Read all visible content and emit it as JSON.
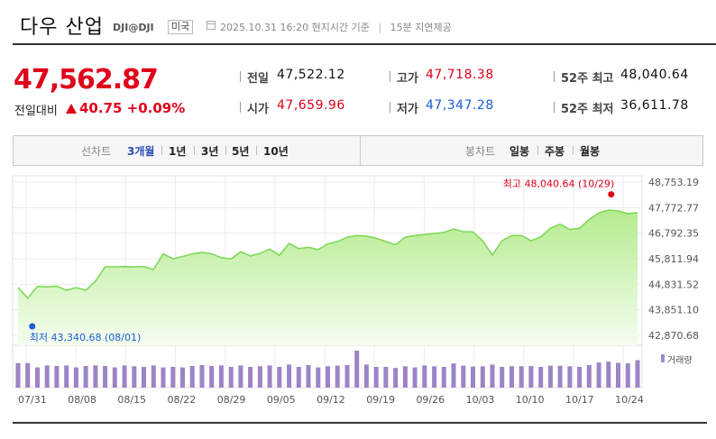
{
  "header": {
    "title": "다우 산업",
    "code": "DJI@DJI",
    "country": "미국",
    "timestamp": "2025.10.31 16:20 현지시간 기준",
    "delay": "15분 지연제공"
  },
  "quote": {
    "price": "47,562.87",
    "change_label": "전일대비",
    "change": "40.75 +0.09%",
    "stats": {
      "prev_close_label": "전일",
      "prev_close": "47,522.12",
      "open_label": "시가",
      "open": "47,659.96",
      "high_label": "고가",
      "high": "47,718.38",
      "low_label": "저가",
      "low": "47,347.28",
      "w52_high_label": "52주 최고",
      "w52_high": "48,040.64",
      "w52_low_label": "52주 최저",
      "w52_low": "36,611.78"
    }
  },
  "tabs": {
    "line_label": "선차트",
    "line_items": [
      "3개월",
      "1년",
      "3년",
      "5년",
      "10년"
    ],
    "line_active": "3개월",
    "candle_label": "봉차트",
    "candle_items": [
      "일봉",
      "주봉",
      "월봉"
    ]
  },
  "chart_data": {
    "type": "area",
    "color": "#7ed957",
    "volume_color": "#9c84c6",
    "y_ticks": [
      "48,753.19",
      "47,772.77",
      "46,792.35",
      "45,811.94",
      "44,831.52",
      "43,851.10",
      "42,870.68"
    ],
    "ylim": [
      42870.68,
      48753.19
    ],
    "x_ticks": [
      "07/31",
      "08/08",
      "08/15",
      "08/22",
      "08/29",
      "09/05",
      "09/12",
      "09/19",
      "09/26",
      "10/03",
      "10/10",
      "10/17",
      "10/24"
    ],
    "values": [
      44700,
      44300,
      44750,
      44730,
      44760,
      44600,
      44700,
      44600,
      44950,
      45500,
      45500,
      45510,
      45500,
      45510,
      45400,
      46000,
      45810,
      45900,
      46000,
      46050,
      46000,
      45850,
      45800,
      46080,
      45920,
      46020,
      46180,
      45940,
      46400,
      46200,
      46250,
      46160,
      46380,
      46470,
      46640,
      46700,
      46680,
      46600,
      46470,
      46350,
      46640,
      46700,
      46740,
      46780,
      46820,
      46950,
      46850,
      46840,
      46500,
      45950,
      46500,
      46700,
      46700,
      46500,
      46650,
      46980,
      47140,
      46930,
      46980,
      47320,
      47570,
      47680,
      47650,
      47540,
      47580
    ],
    "volumes": [
      0.85,
      0.85,
      0.7,
      0.77,
      0.75,
      0.77,
      0.7,
      0.75,
      0.77,
      0.75,
      0.7,
      0.77,
      0.74,
      0.72,
      0.77,
      0.7,
      0.72,
      0.7,
      0.75,
      0.78,
      0.75,
      0.77,
      0.72,
      0.77,
      0.72,
      0.74,
      0.77,
      0.72,
      0.8,
      0.72,
      0.78,
      0.7,
      0.74,
      0.76,
      0.78,
      1.28,
      0.8,
      0.72,
      0.72,
      0.68,
      0.74,
      0.7,
      0.77,
      0.74,
      0.72,
      0.84,
      0.76,
      0.73,
      0.74,
      0.8,
      0.72,
      0.74,
      0.74,
      0.75,
      0.72,
      0.76,
      0.76,
      0.74,
      0.72,
      0.78,
      0.87,
      0.9,
      0.86,
      0.84,
      0.95
    ],
    "high_annotation": "최고 48,040.64 (10/29)",
    "low_annotation": "최저 43,340.68 (08/01)",
    "high_point": {
      "x_index": 61,
      "value": 48040.64
    },
    "low_point": {
      "x_index": 1,
      "value": 43340.68
    },
    "volume_legend": "거래량"
  }
}
